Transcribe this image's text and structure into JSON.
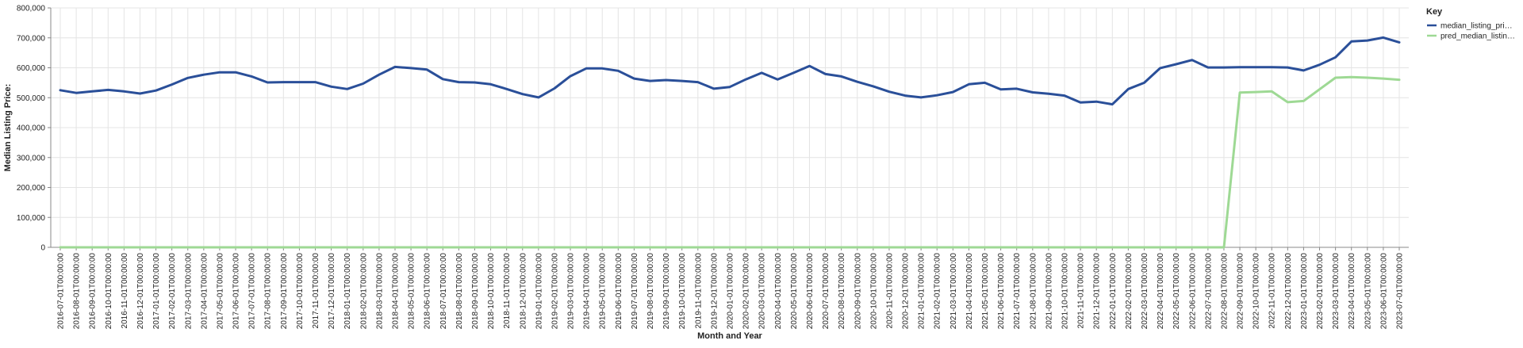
{
  "chart_data": {
    "type": "line",
    "title": "",
    "xlabel": "Month and Year",
    "ylabel": "Median Listing Price:",
    "ylim": [
      0,
      800000
    ],
    "yticks": [
      0,
      100000,
      200000,
      300000,
      400000,
      500000,
      600000,
      700000,
      800000
    ],
    "ytick_labels": [
      "0",
      "100,000",
      "200,000",
      "300,000",
      "400,000",
      "500,000",
      "600,000",
      "700,000",
      "800,000"
    ],
    "grid": true,
    "legend": {
      "title": "Key",
      "placement": "right",
      "entries": [
        {
          "label": "median_listing_pri…",
          "color": "#2a4f99"
        },
        {
          "label": "pred_median_listin…",
          "color": "#9ed994"
        }
      ]
    },
    "x": [
      "2016-07-01T00:00:00",
      "2016-08-01T00:00:00",
      "2016-09-01T00:00:00",
      "2016-10-01T00:00:00",
      "2016-11-01T00:00:00",
      "2016-12-01T00:00:00",
      "2017-01-01T00:00:00",
      "2017-02-01T00:00:00",
      "2017-03-01T00:00:00",
      "2017-04-01T00:00:00",
      "2017-05-01T00:00:00",
      "2017-06-01T00:00:00",
      "2017-07-01T00:00:00",
      "2017-08-01T00:00:00",
      "2017-09-01T00:00:00",
      "2017-10-01T00:00:00",
      "2017-11-01T00:00:00",
      "2017-12-01T00:00:00",
      "2018-01-01T00:00:00",
      "2018-02-01T00:00:00",
      "2018-03-01T00:00:00",
      "2018-04-01T00:00:00",
      "2018-05-01T00:00:00",
      "2018-06-01T00:00:00",
      "2018-07-01T00:00:00",
      "2018-08-01T00:00:00",
      "2018-09-01T00:00:00",
      "2018-10-01T00:00:00",
      "2018-11-01T00:00:00",
      "2018-12-01T00:00:00",
      "2019-01-01T00:00:00",
      "2019-02-01T00:00:00",
      "2019-03-01T00:00:00",
      "2019-04-01T00:00:00",
      "2019-05-01T00:00:00",
      "2019-06-01T00:00:00",
      "2019-07-01T00:00:00",
      "2019-08-01T00:00:00",
      "2019-09-01T00:00:00",
      "2019-10-01T00:00:00",
      "2019-11-01T00:00:00",
      "2019-12-01T00:00:00",
      "2020-01-01T00:00:00",
      "2020-02-01T00:00:00",
      "2020-03-01T00:00:00",
      "2020-04-01T00:00:00",
      "2020-05-01T00:00:00",
      "2020-06-01T00:00:00",
      "2020-07-01T00:00:00",
      "2020-08-01T00:00:00",
      "2020-09-01T00:00:00",
      "2020-10-01T00:00:00",
      "2020-11-01T00:00:00",
      "2020-12-01T00:00:00",
      "2021-01-01T00:00:00",
      "2021-02-01T00:00:00",
      "2021-03-01T00:00:00",
      "2021-04-01T00:00:00",
      "2021-05-01T00:00:00",
      "2021-06-01T00:00:00",
      "2021-07-01T00:00:00",
      "2021-08-01T00:00:00",
      "2021-09-01T00:00:00",
      "2021-10-01T00:00:00",
      "2021-11-01T00:00:00",
      "2021-12-01T00:00:00",
      "2022-01-01T00:00:00",
      "2022-02-01T00:00:00",
      "2022-03-01T00:00:00",
      "2022-04-01T00:00:00",
      "2022-05-01T00:00:00",
      "2022-06-01T00:00:00",
      "2022-07-01T00:00:00",
      "2022-08-01T00:00:00",
      "2022-09-01T00:00:00",
      "2022-10-01T00:00:00",
      "2022-11-01T00:00:00",
      "2022-12-01T00:00:00",
      "2023-01-01T00:00:00",
      "2023-02-01T00:00:00",
      "2023-03-01T00:00:00",
      "2023-04-01T00:00:00",
      "2023-05-01T00:00:00",
      "2023-06-01T00:00:00",
      "2023-07-01T00:00:00"
    ],
    "series": [
      {
        "name": "median_listing_pri…",
        "color": "#2a4f99",
        "values": [
          525000,
          516000,
          521000,
          526000,
          521000,
          514000,
          524000,
          544000,
          566000,
          577000,
          585000,
          585000,
          571000,
          551000,
          552000,
          552000,
          552000,
          537000,
          529000,
          547000,
          577000,
          603000,
          599000,
          594000,
          562000,
          552000,
          551000,
          545000,
          529000,
          512000,
          501000,
          531000,
          572000,
          598000,
          598000,
          590000,
          564000,
          556000,
          559000,
          556000,
          552000,
          530000,
          536000,
          561000,
          583000,
          561000,
          583000,
          606000,
          579000,
          571000,
          553000,
          538000,
          520000,
          507000,
          501000,
          508000,
          519000,
          545000,
          550000,
          528000,
          530000,
          518000,
          513000,
          507000,
          484000,
          487000,
          478000,
          529000,
          550000,
          599000,
          612000,
          626000,
          601000,
          601000,
          602000,
          602000,
          602000,
          601000,
          591000,
          610000,
          635000,
          688000,
          691000,
          701000,
          685000
        ]
      },
      {
        "name": "pred_median_listin…",
        "color": "#9ed994",
        "values": [
          0,
          0,
          0,
          0,
          0,
          0,
          0,
          0,
          0,
          0,
          0,
          0,
          0,
          0,
          0,
          0,
          0,
          0,
          0,
          0,
          0,
          0,
          0,
          0,
          0,
          0,
          0,
          0,
          0,
          0,
          0,
          0,
          0,
          0,
          0,
          0,
          0,
          0,
          0,
          0,
          0,
          0,
          0,
          0,
          0,
          0,
          0,
          0,
          0,
          0,
          0,
          0,
          0,
          0,
          0,
          0,
          0,
          0,
          0,
          0,
          0,
          0,
          0,
          0,
          0,
          0,
          0,
          0,
          0,
          0,
          0,
          0,
          0,
          0,
          517000,
          519000,
          521000,
          485000,
          489000,
          528000,
          567000,
          569000,
          567000,
          564000,
          560000
        ]
      }
    ]
  }
}
